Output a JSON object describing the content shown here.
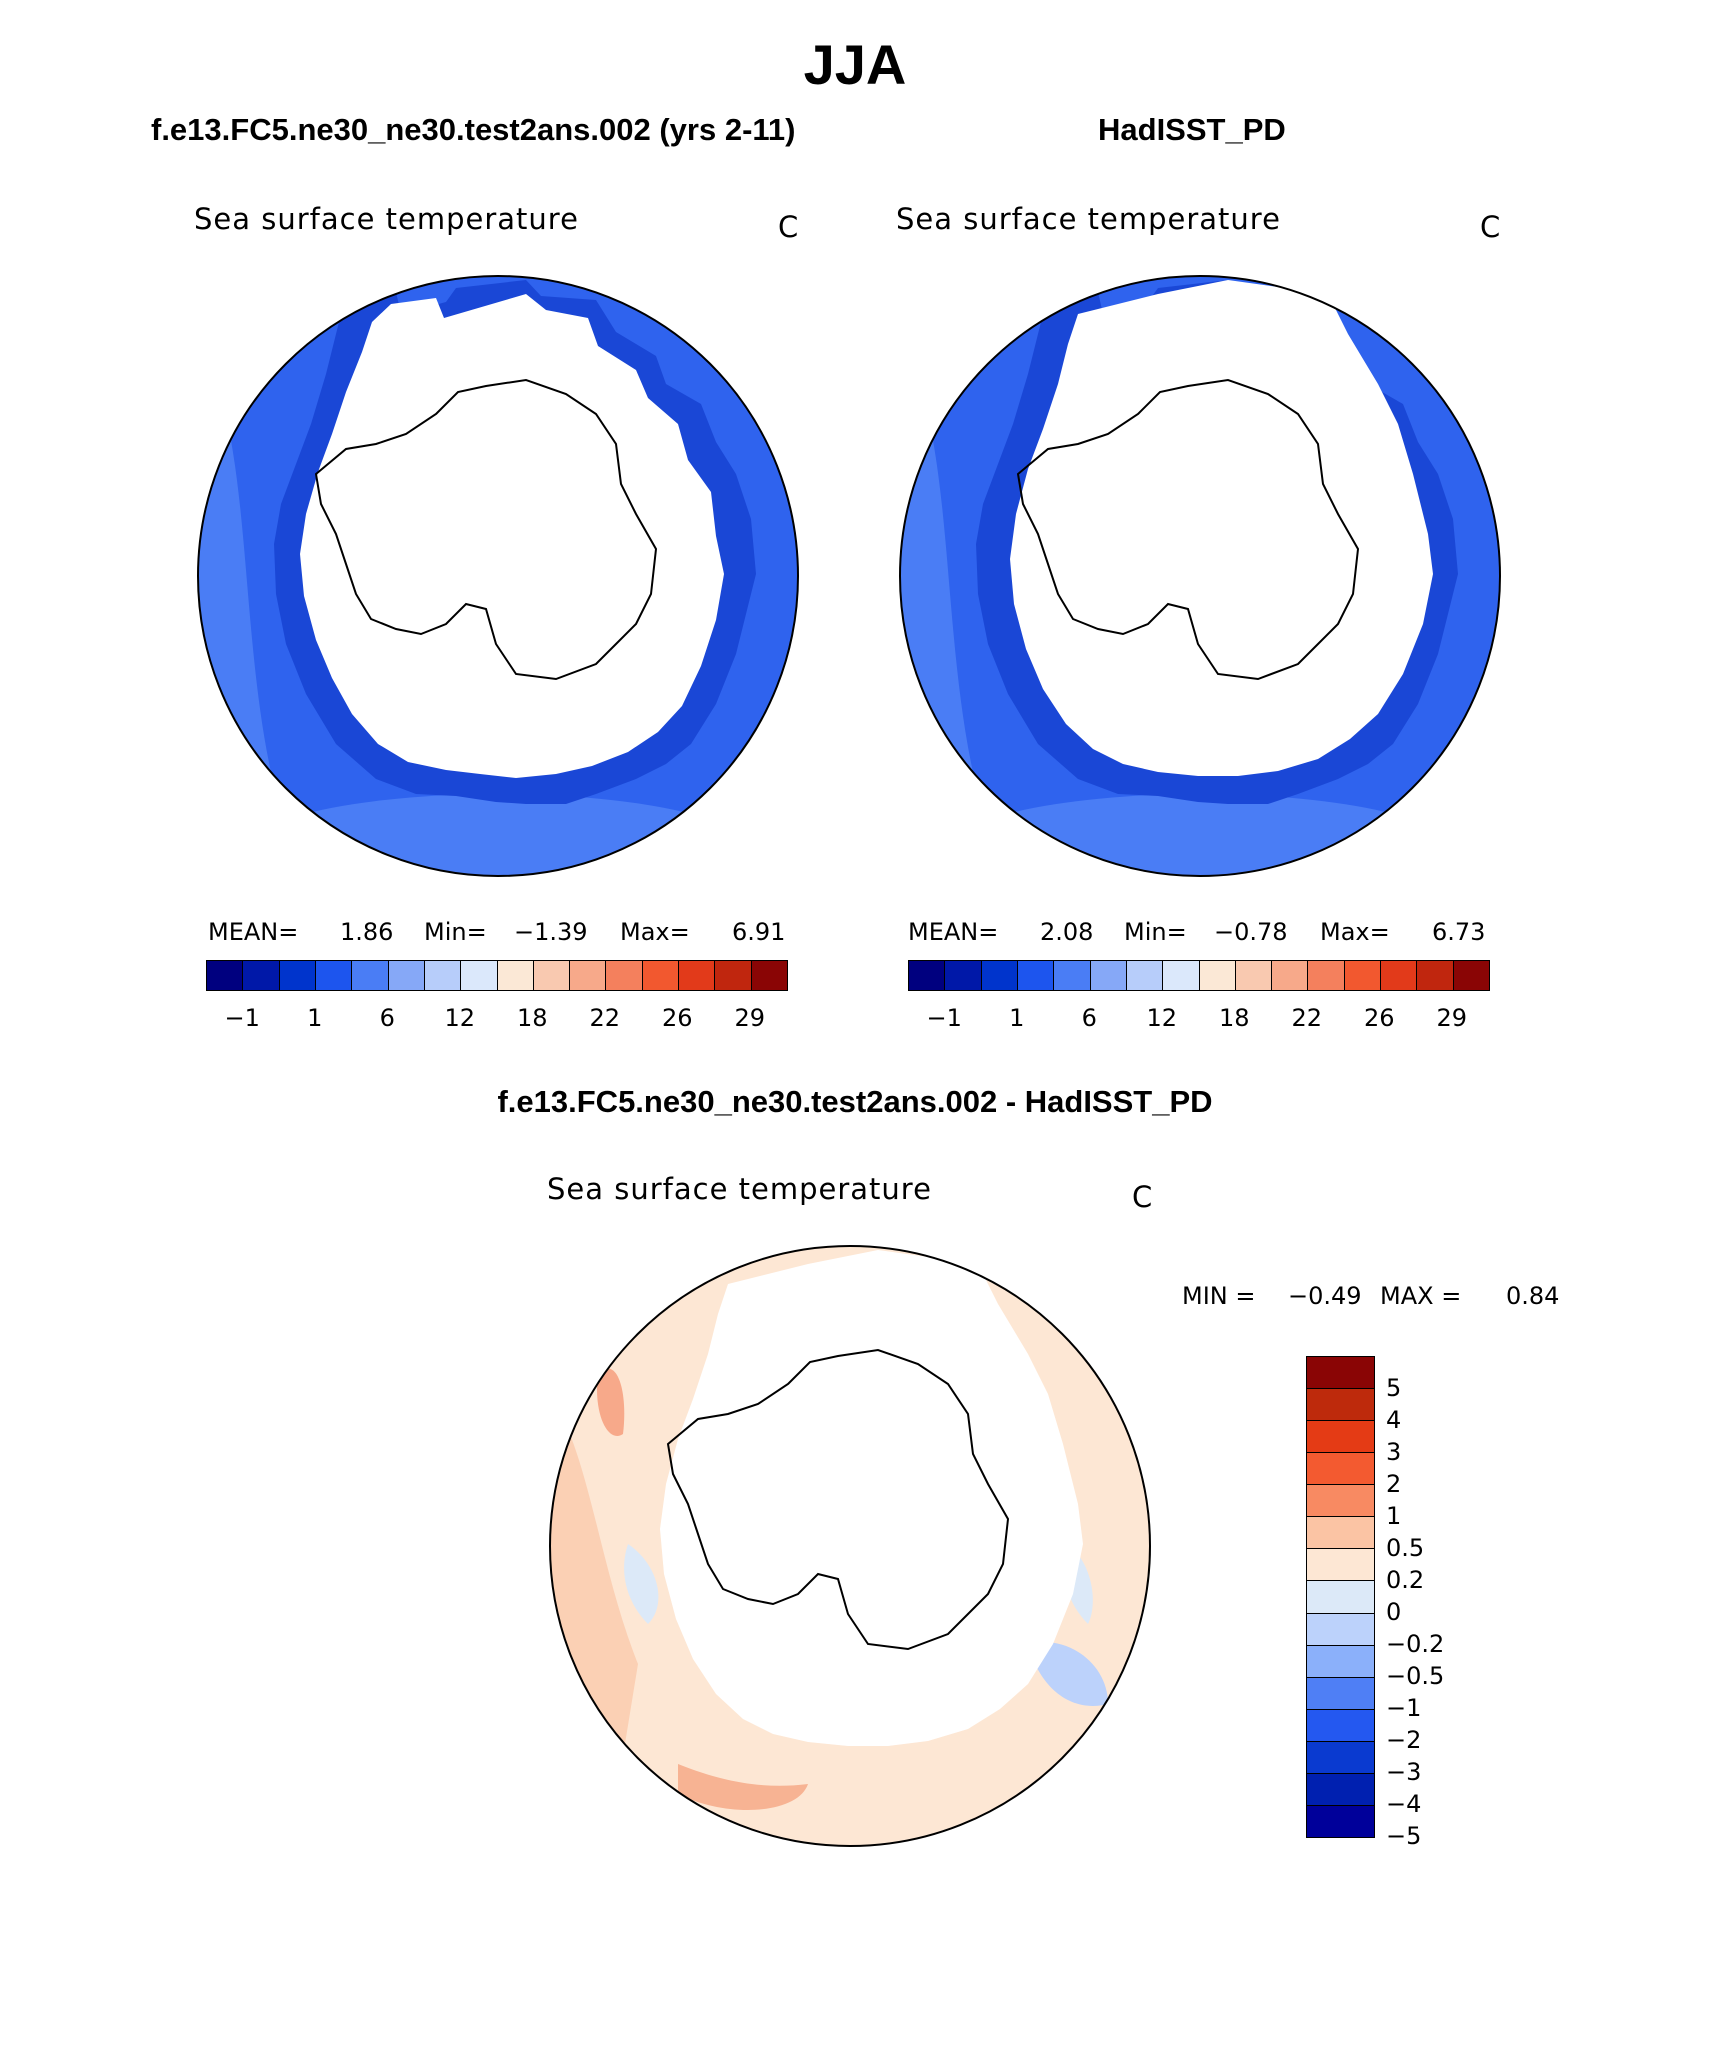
{
  "page_title": "JJA",
  "colors": {
    "abs_scale": [
      "#00007f",
      "#0018a8",
      "#0034cc",
      "#1d55ee",
      "#4a7df5",
      "#86a8f7",
      "#b7cdfa",
      "#dbe8fb",
      "#fbe8d6",
      "#f9c9b0",
      "#f7a98a",
      "#f4805d",
      "#f2582f",
      "#e23a1a",
      "#c0260e",
      "#8a0505"
    ],
    "diff_scale": [
      "#8a0505",
      "#be2a0c",
      "#e43b15",
      "#f35a30",
      "#f88a62",
      "#fbc4a4",
      "#fde7d4",
      "#dce9f8",
      "#bcd2fb",
      "#8bb0fa",
      "#4f7ff5",
      "#2458f0",
      "#0a3ad0",
      "#0020b0",
      "#00009a"
    ]
  },
  "panels": [
    {
      "header": "f.e13.FC5.ne30_ne30.test2ans.002 (yrs 2-11)",
      "variable": "Sea surface temperature",
      "units": "C",
      "mean_label": "MEAN=",
      "mean": "1.86",
      "min_label": "Min=",
      "min": "−1.39",
      "max_label": "Max=",
      "max": "6.91",
      "ticks": [
        "−1",
        "1",
        "6",
        "12",
        "18",
        "22",
        "26",
        "29"
      ]
    },
    {
      "header": "HadISST_PD",
      "variable": "Sea surface temperature",
      "units": "C",
      "mean_label": "MEAN=",
      "mean": "2.08",
      "min_label": "Min=",
      "min": "−0.78",
      "max_label": "Max=",
      "max": "6.73",
      "ticks": [
        "−1",
        "1",
        "6",
        "12",
        "18",
        "22",
        "26",
        "29"
      ]
    }
  ],
  "diff": {
    "header": "f.e13.FC5.ne30_ne30.test2ans.002 - HadISST_PD",
    "variable": "Sea surface temperature",
    "units": "C",
    "min_label": "MIN =",
    "min": "−0.49",
    "max_label": "MAX =",
    "max": "0.84",
    "ticks": [
      "5",
      "4",
      "3",
      "2",
      "1",
      "0.5",
      "0.2",
      "0",
      "−0.2",
      "−0.5",
      "−1",
      "−2",
      "−3",
      "−4",
      "−5"
    ]
  }
}
